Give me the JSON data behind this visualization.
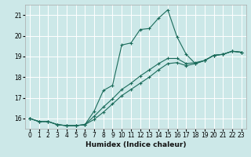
{
  "xlabel": "Humidex (Indice chaleur)",
  "bg_color": "#cce8e8",
  "grid_color": "#ffffff",
  "line_color": "#1a6b5a",
  "xlim": [
    -0.5,
    23.5
  ],
  "ylim": [
    15.5,
    21.5
  ],
  "yticks": [
    16,
    17,
    18,
    19,
    20,
    21
  ],
  "xticks": [
    0,
    1,
    2,
    3,
    4,
    5,
    6,
    7,
    8,
    9,
    10,
    11,
    12,
    13,
    14,
    15,
    16,
    17,
    18,
    19,
    20,
    21,
    22,
    23
  ],
  "line1_x": [
    0,
    1,
    2,
    3,
    4,
    5,
    6,
    7,
    8,
    9,
    10,
    11,
    12,
    13,
    14,
    15,
    16,
    17,
    18,
    19,
    20,
    21,
    22,
    23
  ],
  "line1_y": [
    16.0,
    15.85,
    15.85,
    15.7,
    15.65,
    15.65,
    15.7,
    16.35,
    17.35,
    17.6,
    19.55,
    19.65,
    20.3,
    20.35,
    20.85,
    21.25,
    19.95,
    19.1,
    18.65,
    18.8,
    19.05,
    19.1,
    19.25,
    19.2
  ],
  "line2_x": [
    0,
    1,
    2,
    3,
    4,
    5,
    6,
    7,
    8,
    9,
    10,
    11,
    12,
    13,
    14,
    15,
    16,
    17,
    18,
    19,
    20,
    21,
    22,
    23
  ],
  "line2_y": [
    16.0,
    15.85,
    15.85,
    15.7,
    15.65,
    15.65,
    15.7,
    16.1,
    16.55,
    16.95,
    17.4,
    17.7,
    18.05,
    18.35,
    18.65,
    18.9,
    18.9,
    18.65,
    18.7,
    18.8,
    19.05,
    19.1,
    19.25,
    19.2
  ],
  "line3_x": [
    0,
    1,
    2,
    3,
    4,
    5,
    6,
    7,
    8,
    9,
    10,
    11,
    12,
    13,
    14,
    15,
    16,
    17,
    18,
    19,
    20,
    21,
    22,
    23
  ],
  "line3_y": [
    16.0,
    15.85,
    15.85,
    15.7,
    15.65,
    15.65,
    15.7,
    15.95,
    16.3,
    16.7,
    17.1,
    17.4,
    17.7,
    18.0,
    18.35,
    18.65,
    18.7,
    18.55,
    18.65,
    18.8,
    19.05,
    19.1,
    19.25,
    19.2
  ]
}
